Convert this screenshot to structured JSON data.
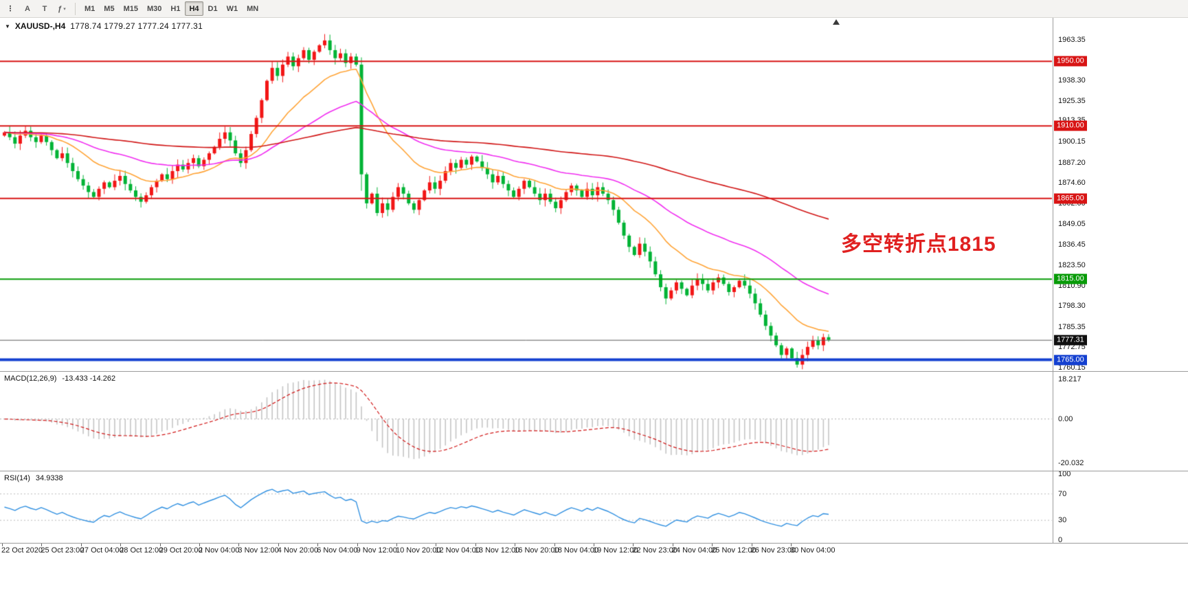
{
  "toolbar": {
    "icon_buttons": [
      {
        "name": "toolbar-handle",
        "glyph": "⋮"
      },
      {
        "name": "insert-text-a",
        "glyph": "A"
      },
      {
        "name": "insert-text-t",
        "glyph": "T"
      },
      {
        "name": "indicators",
        "glyph": "ƒ",
        "caret": "▾"
      }
    ],
    "timeframes": [
      "M1",
      "M5",
      "M15",
      "M30",
      "H1",
      "H4",
      "D1",
      "W1",
      "MN"
    ],
    "active_timeframe": "H4"
  },
  "main_chart": {
    "dropdown_marker": "▼",
    "symbol_title": "XAUUSD-,H4",
    "ohlc": "1778.74 1779.27 1777.24 1777.31",
    "annotation": "多空转折点1815",
    "annotation_color": "#e02020"
  },
  "macd_panel": {
    "label": "MACD(12,26,9)",
    "values": "-13.433 -14.262",
    "fast": 12,
    "slow": 26,
    "signal": 9,
    "y_ticks": [
      "18.217",
      "0.00",
      "-20.032"
    ]
  },
  "rsi_panel": {
    "label": "RSI(14)",
    "value": "34.9338",
    "period": 14,
    "levels": [
      70,
      30
    ],
    "y_ticks": [
      "100",
      "70",
      "30",
      "0"
    ]
  },
  "chart_data": {
    "type": "candlestick",
    "symbol": "XAUUSD",
    "timeframe": "H4",
    "y_axis": {
      "max": 1977,
      "min": 1758,
      "ticks": [
        "1963.35",
        "1938.30",
        "1925.35",
        "1913.35",
        "1900.15",
        "1887.20",
        "1874.60",
        "1862.00",
        "1849.05",
        "1836.45",
        "1823.50",
        "1810.90",
        "1798.30",
        "1785.35",
        "1772.75",
        "1760.15"
      ]
    },
    "first_open": 1904,
    "closes": [
      1906,
      1903,
      1899,
      1904,
      1907,
      1903,
      1900,
      1904,
      1900,
      1895,
      1890,
      1893,
      1887,
      1882,
      1877,
      1873,
      1869,
      1866,
      1871,
      1875,
      1872,
      1876,
      1879,
      1874,
      1870,
      1866,
      1863,
      1867,
      1872,
      1876,
      1880,
      1877,
      1882,
      1886,
      1883,
      1887,
      1890,
      1885,
      1889,
      1893,
      1897,
      1902,
      1906,
      1901,
      1893,
      1887,
      1895,
      1905,
      1915,
      1926,
      1938,
      1946,
      1941,
      1948,
      1953,
      1947,
      1952,
      1957,
      1951,
      1956,
      1960,
      1963,
      1957,
      1952,
      1955,
      1949,
      1953,
      1948,
      1880,
      1862,
      1868,
      1856,
      1862,
      1858,
      1866,
      1872,
      1868,
      1862,
      1858,
      1864,
      1870,
      1875,
      1871,
      1876,
      1882,
      1887,
      1884,
      1889,
      1886,
      1891,
      1888,
      1884,
      1880,
      1875,
      1879,
      1874,
      1870,
      1866,
      1871,
      1876,
      1872,
      1868,
      1864,
      1868,
      1863,
      1859,
      1864,
      1869,
      1873,
      1870,
      1866,
      1871,
      1867,
      1872,
      1868,
      1864,
      1858,
      1850,
      1842,
      1835,
      1830,
      1837,
      1832,
      1826,
      1818,
      1810,
      1803,
      1808,
      1813,
      1809,
      1805,
      1811,
      1815,
      1812,
      1808,
      1813,
      1816,
      1812,
      1807,
      1810,
      1814,
      1811,
      1806,
      1800,
      1793,
      1786,
      1780,
      1774,
      1768,
      1772,
      1766,
      1762,
      1768,
      1773,
      1777,
      1774,
      1779,
      1777.31
    ],
    "moving_averages": [
      {
        "name": "ma-fast",
        "period": 18,
        "color": "#ffa335"
      },
      {
        "name": "ma-medium",
        "period": 45,
        "color": "#f02cf0"
      },
      {
        "name": "ma-slow",
        "period": 150,
        "color": "#d01414"
      }
    ],
    "levels": [
      {
        "value": 1950,
        "label": "1950.00",
        "color": "#d81414",
        "width": 2
      },
      {
        "value": 1910,
        "label": "1910.00",
        "color": "#d81414",
        "width": 2
      },
      {
        "value": 1865,
        "label": "1865.00",
        "color": "#d81414",
        "width": 2
      },
      {
        "value": 1815,
        "label": "1815.00",
        "color": "#089b08",
        "width": 2
      },
      {
        "value": 1765,
        "label": "1765.00",
        "color": "#1440d0",
        "width": 4
      }
    ],
    "current_price": {
      "value": 1777.31,
      "label": "1777.31",
      "line_color": "#5a5a5a",
      "badge_bg": "#101010"
    },
    "x_labels": [
      "22 Oct 2020",
      "25 Oct 23:00",
      "27 Oct 04:00",
      "28 Oct 12:00",
      "29 Oct 20:00",
      "2 Nov 04:00",
      "3 Nov 12:00",
      "4 Nov 20:00",
      "6 Nov 04:00",
      "9 Nov 12:00",
      "10 Nov 20:00",
      "12 Nov 04:00",
      "13 Nov 12:00",
      "16 Nov 20:00",
      "18 Nov 04:00",
      "19 Nov 12:00",
      "22 Nov 23:00",
      "24 Nov 04:00",
      "25 Nov 12:00",
      "26 Nov 23:00",
      "30 Nov 04:00"
    ],
    "colors": {
      "bull": "#f21616",
      "bear": "#00b335",
      "macd_hist": "#c4c4c4",
      "macd_signal": "#d01414",
      "rsi_line": "#2f8fe0"
    }
  }
}
